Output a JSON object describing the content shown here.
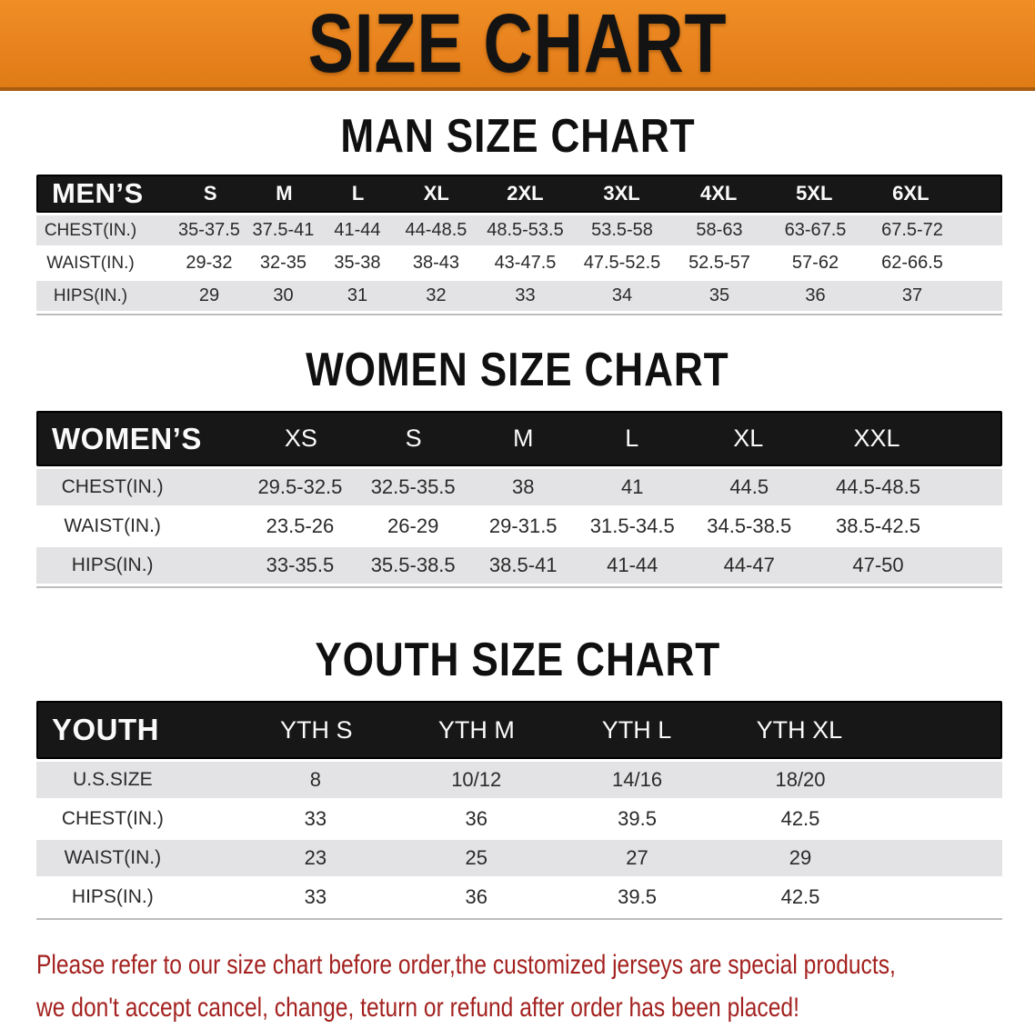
{
  "colors": {
    "banner_bg": "#e8821e",
    "banner_border": "#a85c10",
    "header_bar": "#171717",
    "row_gray": "#e3e3e5",
    "text_dark": "#2a2a2a",
    "notice_red": "#a32220"
  },
  "banner": {
    "title": "SIZE CHART"
  },
  "sections": [
    {
      "heading": "MAN SIZE CHART",
      "table": {
        "header_label": "MEN’S",
        "columns": [
          "S",
          "M",
          "L",
          "XL",
          "2XL",
          "3XL",
          "4XL",
          "5XL",
          "6XL"
        ],
        "rows": [
          {
            "label": "CHEST(IN.)",
            "values": [
              "35-37.5",
              "37.5-41",
              "41-44",
              "44-48.5",
              "48.5-53.5",
              "53.5-58",
              "58-63",
              "63-67.5",
              "67.5-72"
            ]
          },
          {
            "label": "WAIST(IN.)",
            "values": [
              "29-32",
              "32-35",
              "35-38",
              "38-43",
              "43-47.5",
              "47.5-52.5",
              "52.5-57",
              "57-62",
              "62-66.5"
            ]
          },
          {
            "label": "HIPS(IN.)",
            "values": [
              "29",
              "30",
              "31",
              "32",
              "33",
              "34",
              "35",
              "36",
              "37"
            ]
          }
        ]
      }
    },
    {
      "heading": "WOMEN SIZE CHART",
      "table": {
        "header_label": "WOMEN’S",
        "columns": [
          "XS",
          "S",
          "M",
          "L",
          "XL",
          "XXL"
        ],
        "rows": [
          {
            "label": "CHEST(IN.)",
            "values": [
              "29.5-32.5",
              "32.5-35.5",
              "38",
              "41",
              "44.5",
              "44.5-48.5"
            ]
          },
          {
            "label": "WAIST(IN.)",
            "values": [
              "23.5-26",
              "26-29",
              "29-31.5",
              "31.5-34.5",
              "34.5-38.5",
              "38.5-42.5"
            ]
          },
          {
            "label": "HIPS(IN.)",
            "values": [
              "33-35.5",
              "35.5-38.5",
              "38.5-41",
              "41-44",
              "44-47",
              "47-50"
            ]
          }
        ]
      }
    },
    {
      "heading": "YOUTH SIZE CHART",
      "table": {
        "header_label": "YOUTH",
        "columns": [
          "YTH S",
          "YTH M",
          "YTH L",
          "YTH XL"
        ],
        "rows": [
          {
            "label": "U.S.SIZE",
            "values": [
              "8",
              "10/12",
              "14/16",
              "18/20"
            ]
          },
          {
            "label": "CHEST(IN.)",
            "values": [
              "33",
              "36",
              "39.5",
              "42.5"
            ]
          },
          {
            "label": "WAIST(IN.)",
            "values": [
              "23",
              "25",
              "27",
              "29"
            ]
          },
          {
            "label": "HIPS(IN.)",
            "values": [
              "33",
              "36",
              "39.5",
              "42.5"
            ]
          }
        ]
      }
    }
  ],
  "footer": {
    "line1": "Please refer to our size chart before order,the customized jerseys are special products,",
    "line2": "we don't accept cancel, change, teturn or refund after order has been placed!"
  }
}
